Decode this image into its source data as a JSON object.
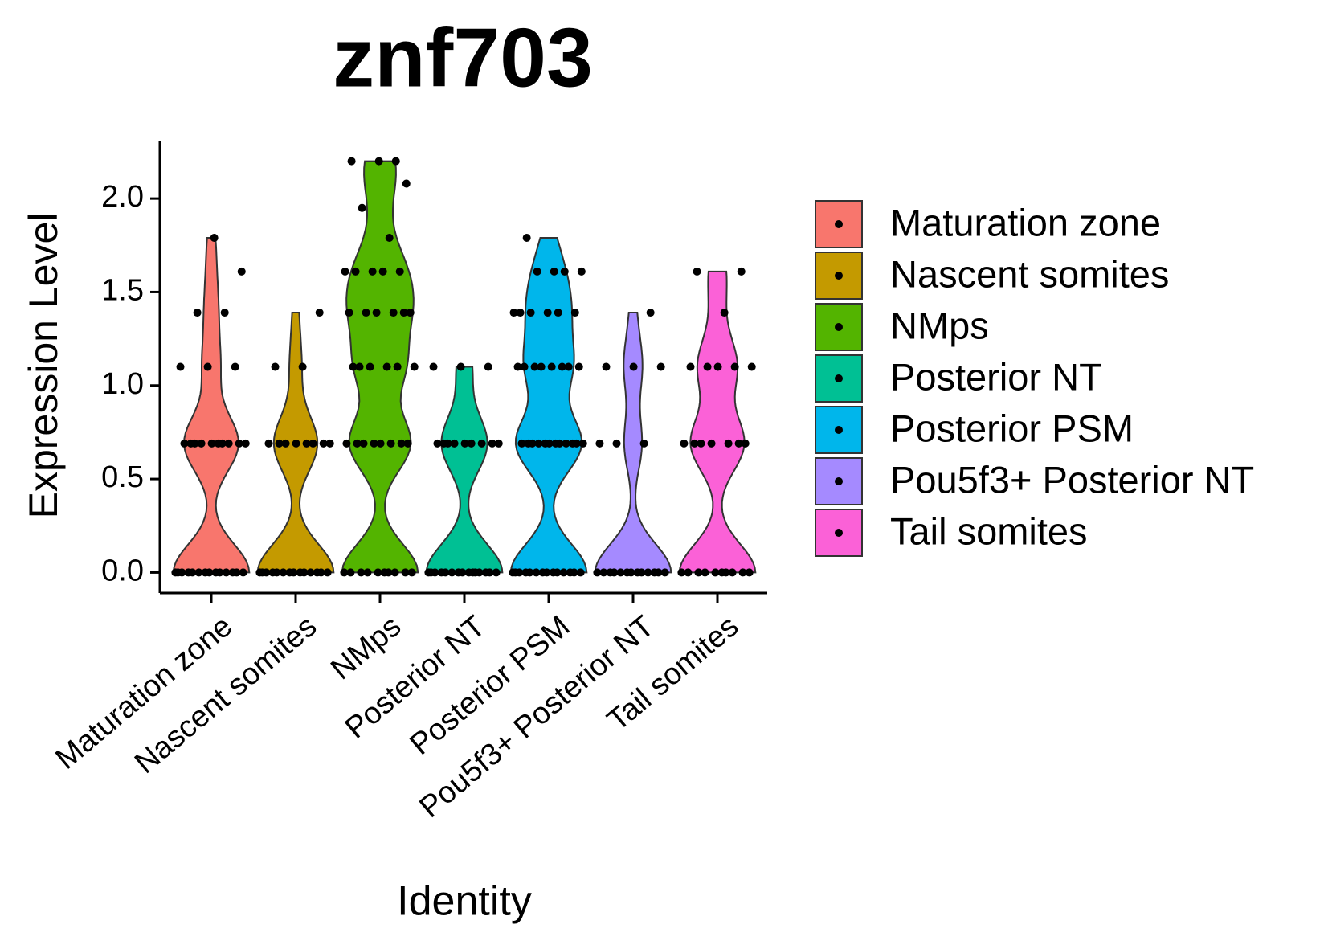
{
  "chart_data": {
    "type": "violin",
    "title": "znf703",
    "x_label": "Identity",
    "y_label": "Expression Level",
    "categories": [
      "Maturation zone",
      "Nascent somites",
      "NMps",
      "Posterior NT",
      "Posterior PSM",
      "Pou5f3+ Posterior NT",
      "Tail somites"
    ],
    "series": [
      {
        "name": "Maturation zone",
        "color": "#F8766D",
        "values": [
          0,
          0,
          0,
          0,
          0,
          0,
          0,
          0,
          0,
          0,
          0,
          0,
          0,
          0,
          0.69,
          0.69,
          0.69,
          0.69,
          0.69,
          0.69,
          0.69,
          0.69,
          0.69,
          0.69,
          1.1,
          1.1,
          1.1,
          1.39,
          1.39,
          1.61,
          1.79
        ]
      },
      {
        "name": "Nascent somites",
        "color": "#C49A00",
        "values": [
          0,
          0,
          0,
          0,
          0,
          0,
          0,
          0,
          0,
          0,
          0,
          0,
          0,
          0,
          0.69,
          0.69,
          0.69,
          0.69,
          0.69,
          0.69,
          0.69,
          0.69,
          1.1,
          1.1,
          1.39
        ]
      },
      {
        "name": "NMps",
        "color": "#53B400",
        "values": [
          0,
          0,
          0,
          0,
          0,
          0,
          0,
          0,
          0,
          0,
          0.69,
          0.69,
          0.69,
          0.69,
          0.69,
          0.69,
          0.69,
          0.69,
          1.1,
          1.1,
          1.1,
          1.1,
          1.1,
          1.1,
          1.39,
          1.39,
          1.39,
          1.39,
          1.39,
          1.39,
          1.61,
          1.61,
          1.61,
          1.61,
          1.61,
          1.79,
          1.95,
          2.08,
          2.2,
          2.2,
          2.2
        ]
      },
      {
        "name": "Posterior NT",
        "color": "#00C094",
        "values": [
          0,
          0,
          0,
          0,
          0,
          0,
          0,
          0,
          0,
          0,
          0,
          0,
          0,
          0,
          0,
          0.69,
          0.69,
          0.69,
          0.69,
          0.69,
          0.69,
          0.69,
          0.69,
          0.69,
          1.1,
          1.1,
          1.1
        ]
      },
      {
        "name": "Posterior PSM",
        "color": "#00B6EB",
        "values": [
          0,
          0,
          0,
          0,
          0,
          0,
          0,
          0,
          0,
          0,
          0,
          0,
          0,
          0,
          0.69,
          0.69,
          0.69,
          0.69,
          0.69,
          0.69,
          0.69,
          0.69,
          0.69,
          0.69,
          0.69,
          0.69,
          1.1,
          1.1,
          1.1,
          1.1,
          1.1,
          1.1,
          1.1,
          1.1,
          1.39,
          1.39,
          1.39,
          1.39,
          1.39,
          1.39,
          1.61,
          1.61,
          1.61,
          1.61,
          1.79
        ]
      },
      {
        "name": "Pou5f3+ Posterior NT",
        "color": "#A58AFF",
        "values": [
          0,
          0,
          0,
          0,
          0,
          0,
          0,
          0,
          0,
          0,
          0,
          0,
          0,
          0.69,
          0.69,
          0.69,
          1.1,
          1.1,
          1.1,
          1.39
        ]
      },
      {
        "name": "Tail somites",
        "color": "#FB61D7",
        "values": [
          0,
          0,
          0,
          0,
          0,
          0,
          0,
          0,
          0,
          0,
          0.69,
          0.69,
          0.69,
          0.69,
          0.69,
          0.69,
          0.69,
          1.1,
          1.1,
          1.1,
          1.1,
          1.1,
          1.39,
          1.61,
          1.61
        ]
      }
    ],
    "ylim": [
      -0.11,
      2.31
    ],
    "yticks": [
      {
        "value": 0,
        "label": "0.0"
      },
      0.5,
      {
        "value": 1,
        "label": "1.0"
      },
      1.5,
      {
        "value": 2,
        "label": "2.0"
      }
    ],
    "legend": "right"
  }
}
